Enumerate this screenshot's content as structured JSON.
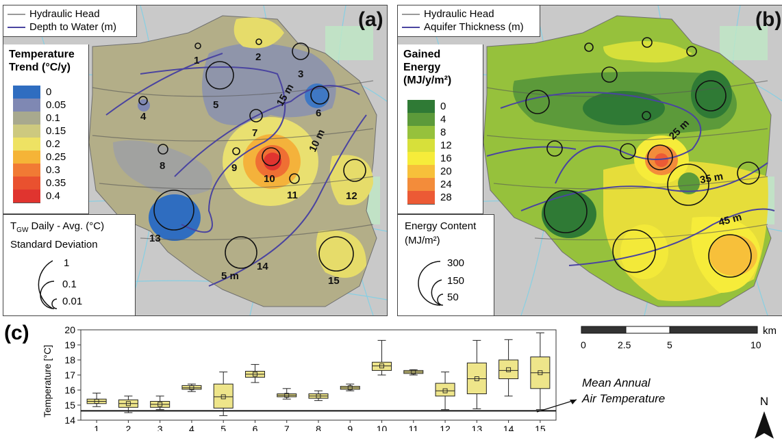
{
  "panel_a": {
    "tag": "(a)",
    "legend": {
      "line1": "Hydraulic Head",
      "line2": "Depth to Water (m)"
    },
    "colorbar": {
      "title_line1": "Temperature",
      "title_line2": "Trend (°C/y)",
      "items": [
        {
          "label": "0",
          "color": "#2f6dc0"
        },
        {
          "label": "0.05",
          "color": "#7f88b3"
        },
        {
          "label": "0.1",
          "color": "#a8a98e"
        },
        {
          "label": "0.15",
          "color": "#cdc97f"
        },
        {
          "label": "0.2",
          "color": "#eee263"
        },
        {
          "label": "0.25",
          "color": "#f5b437"
        },
        {
          "label": "0.3",
          "color": "#f17a34"
        },
        {
          "label": "0.35",
          "color": "#e9512f"
        },
        {
          "label": "0.4",
          "color": "#e0342f"
        }
      ]
    },
    "size_legend": {
      "title_line1": "T",
      "title_sub": "GW",
      "title_rest": " Daily - Avg. (°C)",
      "title_line2": "Standard Deviation",
      "values": [
        "1",
        "0.1",
        "0.01"
      ]
    },
    "contours": [
      "15 m",
      "10 m",
      "5 m"
    ],
    "wells": [
      "1",
      "2",
      "3",
      "4",
      "5",
      "6",
      "7",
      "8",
      "9",
      "10",
      "11",
      "12",
      "13",
      "14",
      "15"
    ]
  },
  "panel_b": {
    "tag": "(b)",
    "legend": {
      "line1": "Hydraulic Head",
      "line2": "Aquifer Thickness (m)"
    },
    "colorbar": {
      "title_line1": "Gained",
      "title_line2": "Energy",
      "title_line3": "(MJ/y/m²)",
      "items": [
        {
          "label": "0",
          "color": "#2f7a35"
        },
        {
          "label": "4",
          "color": "#5c9a3a"
        },
        {
          "label": "8",
          "color": "#96c13c"
        },
        {
          "label": "12",
          "color": "#d7e03a"
        },
        {
          "label": "16",
          "color": "#f6ec3a"
        },
        {
          "label": "20",
          "color": "#f7c03a"
        },
        {
          "label": "24",
          "color": "#f38c3a"
        },
        {
          "label": "28",
          "color": "#ec5a35"
        }
      ]
    },
    "size_legend": {
      "title_line1": "Energy Content",
      "title_line2": "(MJ/m²)",
      "values": [
        "300",
        "150",
        "50"
      ]
    },
    "contours": [
      "25 m",
      "35 m",
      "45 m"
    ]
  },
  "panel_c": {
    "tag": "(c)",
    "chart_data": {
      "type": "box",
      "ylabel": "Temperature [°C]",
      "ylim": [
        14,
        20
      ],
      "yticks": [
        "14",
        "15",
        "16",
        "17",
        "18",
        "19",
        "20"
      ],
      "categories": [
        "1",
        "2",
        "3",
        "4",
        "5",
        "6",
        "7",
        "8",
        "9",
        "10",
        "11",
        "12",
        "13",
        "14",
        "15"
      ],
      "boxes": [
        {
          "min": 14.9,
          "q1": 15.1,
          "median": 15.25,
          "q3": 15.4,
          "max": 15.8,
          "mean": 15.25
        },
        {
          "min": 14.5,
          "q1": 14.85,
          "median": 15.1,
          "q3": 15.35,
          "max": 15.6,
          "mean": 15.1
        },
        {
          "min": 14.7,
          "q1": 14.85,
          "median": 15.05,
          "q3": 15.25,
          "max": 15.6,
          "mean": 15.05
        },
        {
          "min": 15.9,
          "q1": 16.05,
          "median": 16.15,
          "q3": 16.3,
          "max": 16.4,
          "mean": 16.15
        },
        {
          "min": 14.3,
          "q1": 14.8,
          "median": 15.55,
          "q3": 16.4,
          "max": 17.2,
          "mean": 15.55
        },
        {
          "min": 16.5,
          "q1": 16.85,
          "median": 17.05,
          "q3": 17.25,
          "max": 17.7,
          "mean": 17.05
        },
        {
          "min": 15.4,
          "q1": 15.55,
          "median": 15.65,
          "q3": 15.75,
          "max": 16.1,
          "mean": 15.65
        },
        {
          "min": 15.3,
          "q1": 15.45,
          "median": 15.6,
          "q3": 15.75,
          "max": 15.95,
          "mean": 15.6
        },
        {
          "min": 15.95,
          "q1": 16.05,
          "median": 16.15,
          "q3": 16.25,
          "max": 16.4,
          "mean": 16.15
        },
        {
          "min": 17.0,
          "q1": 17.3,
          "median": 17.6,
          "q3": 17.85,
          "max": 19.3,
          "mean": 17.6
        },
        {
          "min": 17.0,
          "q1": 17.1,
          "median": 17.2,
          "q3": 17.3,
          "max": 17.35,
          "mean": 17.2
        },
        {
          "min": 14.7,
          "q1": 15.6,
          "median": 15.95,
          "q3": 16.45,
          "max": 17.2,
          "mean": 15.95
        },
        {
          "min": 14.75,
          "q1": 15.75,
          "median": 16.75,
          "q3": 17.8,
          "max": 19.3,
          "mean": 16.75
        },
        {
          "min": 15.6,
          "q1": 16.75,
          "median": 17.3,
          "q3": 18.0,
          "max": 19.35,
          "mean": 17.35
        },
        {
          "min": 14.7,
          "q1": 16.1,
          "median": 17.15,
          "q3": 18.2,
          "max": 19.8,
          "mean": 17.15
        }
      ],
      "reference_line": {
        "value": 14.62,
        "label_line1": "Mean Annual",
        "label_line2": "Air Temperature"
      }
    }
  },
  "scale_bar": {
    "ticks": [
      "0",
      "2.5",
      "5",
      "10"
    ],
    "unit": "km"
  },
  "north": "N"
}
